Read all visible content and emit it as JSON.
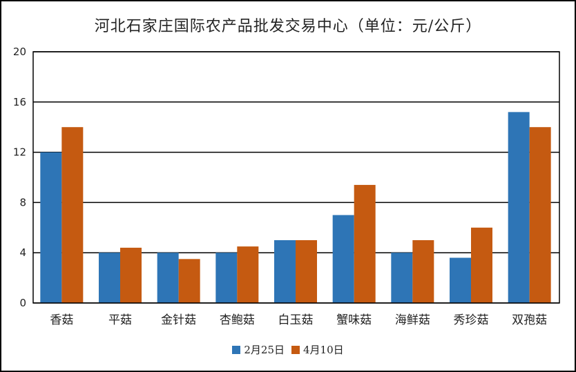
{
  "chart_data": {
    "type": "bar",
    "title": "河北石家庄国际农产品批发交易中心（单位：元/公斤）",
    "categories": [
      "香菇",
      "平菇",
      "金针菇",
      "杏鲍菇",
      "白玉菇",
      "蟹味菇",
      "海鲜菇",
      "秀珍菇",
      "双孢菇"
    ],
    "series": [
      {
        "name": "2月25日",
        "color": "#2e75b6",
        "values": [
          12,
          4,
          4,
          4,
          5,
          7,
          4,
          3.6,
          15.2
        ]
      },
      {
        "name": "4月10日",
        "color": "#c55a11",
        "values": [
          14,
          4.4,
          3.5,
          4.5,
          5,
          9.4,
          5,
          6,
          14
        ]
      }
    ],
    "xlabel": "",
    "ylabel": "",
    "ylim": [
      0,
      20
    ],
    "yticks": [
      "0",
      "4",
      "8",
      "12",
      "16",
      "20"
    ],
    "grid": true,
    "legend_position": "bottom"
  }
}
